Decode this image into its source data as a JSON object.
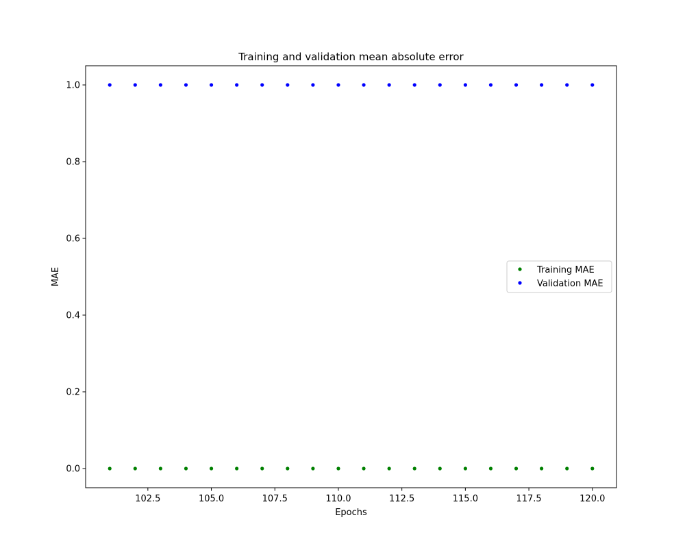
{
  "chart_data": {
    "type": "scatter",
    "title": "Training and validation mean absolute error",
    "xlabel": "Epochs",
    "ylabel": "MAE",
    "xlim": [
      100.05,
      120.95
    ],
    "ylim": [
      -0.05,
      1.05
    ],
    "xticks": [
      102.5,
      105.0,
      107.5,
      110.0,
      112.5,
      115.0,
      117.5,
      120.0
    ],
    "xtick_labels": [
      "102.5",
      "105.0",
      "107.5",
      "110.0",
      "112.5",
      "115.0",
      "117.5",
      "120.0"
    ],
    "yticks": [
      0.0,
      0.2,
      0.4,
      0.6,
      0.8,
      1.0
    ],
    "ytick_labels": [
      "0.0",
      "0.2",
      "0.4",
      "0.6",
      "0.8",
      "1.0"
    ],
    "grid": false,
    "legend_position": "center-right",
    "x": [
      101,
      102,
      103,
      104,
      105,
      106,
      107,
      108,
      109,
      110,
      111,
      112,
      113,
      114,
      115,
      116,
      117,
      118,
      119,
      120
    ],
    "series": [
      {
        "name": "Training MAE",
        "color": "#008000",
        "values": [
          0,
          0,
          0,
          0,
          0,
          0,
          0,
          0,
          0,
          0,
          0,
          0,
          0,
          0,
          0,
          0,
          0,
          0,
          0,
          0
        ]
      },
      {
        "name": "Validation MAE",
        "color": "#0000ff",
        "values": [
          1,
          1,
          1,
          1,
          1,
          1,
          1,
          1,
          1,
          1,
          1,
          1,
          1,
          1,
          1,
          1,
          1,
          1,
          1,
          1
        ]
      }
    ]
  }
}
